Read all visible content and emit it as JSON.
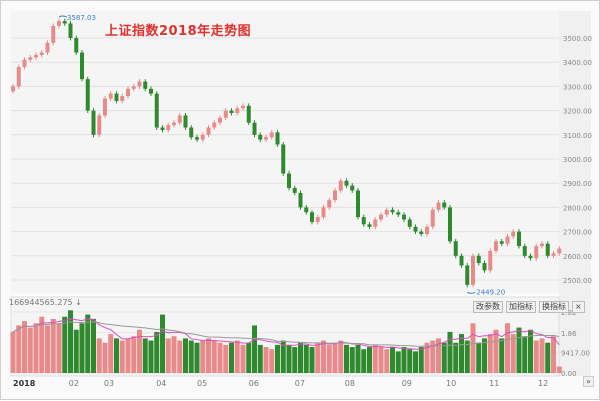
{
  "chart_data": {
    "type": "candlestick",
    "title": "上证指数2018年走势图",
    "price_ylim": [
      2400,
      3600
    ],
    "price_ticks": [
      "3500.00",
      "3400.00",
      "3300.00",
      "3200.00",
      "3100.00",
      "3000.00",
      "2900.00",
      "2800.00",
      "2700.00",
      "2600.00",
      "2500.00"
    ],
    "price_tick_values": [
      3500,
      3400,
      3300,
      3200,
      3100,
      3000,
      2900,
      2800,
      2700,
      2600,
      2500
    ],
    "grid": true,
    "closes": [
      3300,
      3380,
      3410,
      3420,
      3430,
      3440,
      3480,
      3550,
      3570,
      3560,
      3500,
      3440,
      3330,
      3200,
      3100,
      3180,
      3250,
      3270,
      3240,
      3260,
      3290,
      3300,
      3320,
      3290,
      3270,
      3130,
      3120,
      3140,
      3150,
      3180,
      3130,
      3090,
      3080,
      3100,
      3130,
      3150,
      3170,
      3200,
      3190,
      3210,
      3220,
      3150,
      3100,
      3080,
      3090,
      3110,
      3060,
      2940,
      2880,
      2860,
      2800,
      2780,
      2740,
      2760,
      2800,
      2830,
      2870,
      2910,
      2890,
      2870,
      2760,
      2730,
      2720,
      2750,
      2770,
      2790,
      2780,
      2770,
      2750,
      2720,
      2700,
      2690,
      2720,
      2790,
      2820,
      2800,
      2660,
      2600,
      2560,
      2480,
      2600,
      2570,
      2540,
      2620,
      2660,
      2650,
      2680,
      2700,
      2640,
      2600,
      2590,
      2640,
      2650,
      2600,
      2610,
      2630
    ],
    "high_annotation": "3587.03",
    "high_value": 3587.03,
    "low_annotation": "2449.20",
    "low_value": 2449.2,
    "x_ticks": [
      {
        "label": "2018",
        "index": 0
      },
      {
        "label": "02",
        "index": 10.4
      },
      {
        "label": "03",
        "index": 16.5
      },
      {
        "label": "04",
        "index": 25.6
      },
      {
        "label": "05",
        "index": 32.7
      },
      {
        "label": "06",
        "index": 41.7
      },
      {
        "label": "07",
        "index": 49.7
      },
      {
        "label": "08",
        "index": 58.4
      },
      {
        "label": "09",
        "index": 68.3
      },
      {
        "label": "10",
        "index": 76
      },
      {
        "label": "11",
        "index": 83.5
      },
      {
        "label": "12",
        "index": 92
      }
    ],
    "volume": {
      "header": "166944565.275 ↓",
      "ticks": [
        "2.82",
        "1.86",
        "9417.00",
        "0.00"
      ],
      "tick_values": [
        2.82,
        1.86,
        0.94,
        0
      ],
      "ylim": [
        0,
        2.82
      ],
      "values": [
        1.9,
        2.2,
        2.4,
        2.1,
        2.3,
        2.6,
        2.2,
        2.5,
        2.3,
        2.6,
        2.9,
        2.0,
        2.3,
        2.7,
        2.5,
        1.6,
        1.4,
        1.8,
        1.6,
        1.5,
        1.6,
        1.7,
        2.0,
        1.6,
        1.5,
        1.9,
        2.7,
        1.6,
        1.7,
        1.5,
        1.6,
        1.5,
        1.4,
        1.5,
        1.6,
        1.5,
        1.4,
        1.3,
        1.4,
        1.5,
        1.3,
        1.4,
        2.2,
        1.3,
        1.2,
        1.1,
        1.3,
        1.5,
        1.3,
        1.2,
        1.4,
        1.3,
        1.2,
        1.4,
        1.5,
        1.3,
        1.4,
        1.5,
        1.3,
        1.2,
        1.3,
        1.1,
        1.2,
        1.3,
        1.2,
        1.1,
        1.2,
        1.0,
        1.2,
        1.1,
        1.0,
        1.2,
        1.4,
        1.5,
        1.6,
        1.4,
        1.9,
        1.4,
        1.8,
        1.5,
        2.3,
        1.4,
        1.6,
        1.8,
        2.0,
        1.6,
        2.3,
        1.8,
        2.1,
        1.7,
        2.0,
        1.5,
        1.6,
        1.4,
        1.7,
        0.3
      ]
    },
    "colors": {
      "up": "#e98a8a",
      "down": "#2f8a2f",
      "ma1": "#d94fc0",
      "ma2": "#999999",
      "annotation": "#3a7fc4",
      "title": "#e0322d"
    }
  },
  "toolbar": {
    "btn1": "改参数",
    "btn2": "加指标",
    "btn3": "换指标",
    "close": "×",
    "more": "»"
  }
}
